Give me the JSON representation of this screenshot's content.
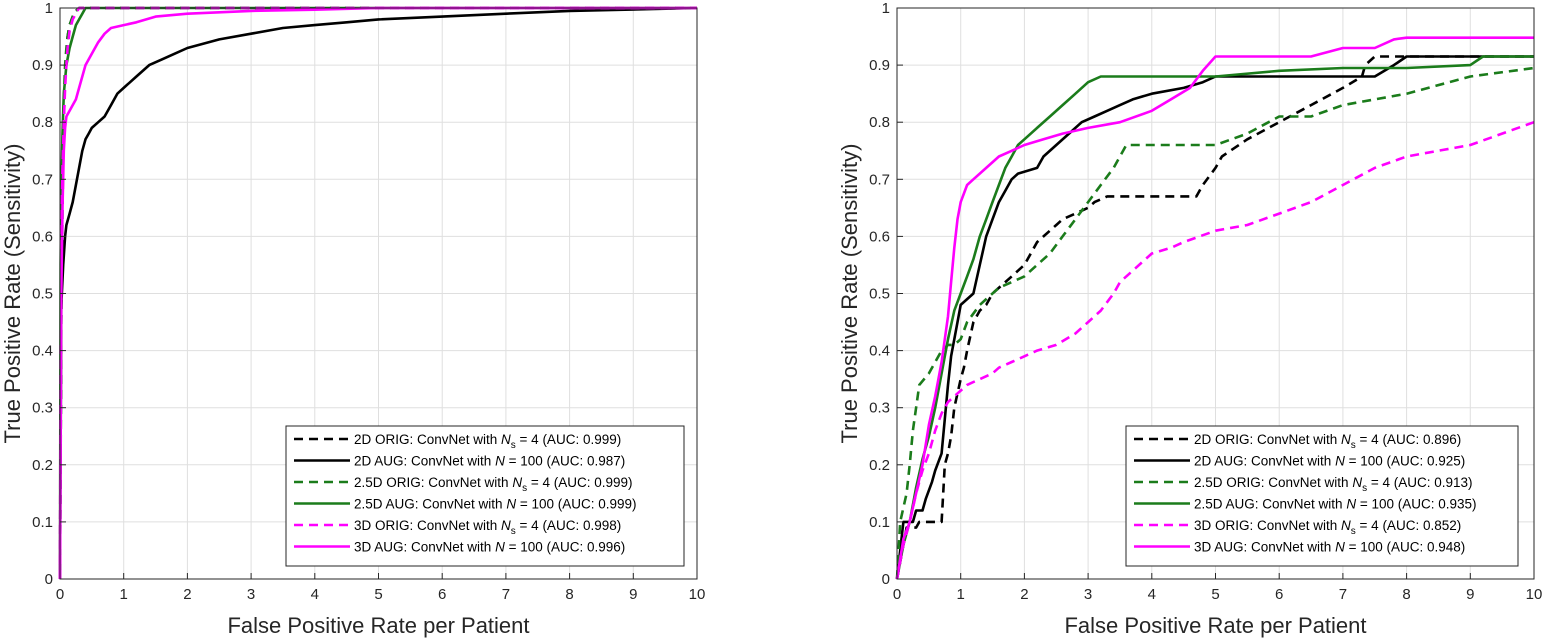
{
  "chart_data": [
    {
      "type": "line",
      "xlabel": "False Positive Rate per Patient",
      "ylabel": "True Positive Rate (Sensitivity)",
      "xlim": [
        0,
        10
      ],
      "ylim": [
        0,
        1
      ],
      "x_ticks": [
        "0",
        "1",
        "2",
        "3",
        "4",
        "5",
        "6",
        "7",
        "8",
        "9",
        "10"
      ],
      "y_ticks": [
        "0",
        "0.1",
        "0.2",
        "0.3",
        "0.4",
        "0.5",
        "0.6",
        "0.7",
        "0.8",
        "0.9",
        "1"
      ],
      "grid": true,
      "legend_position": "bottom-right",
      "series": [
        {
          "name": "2D   ORIG: ConvNet with",
          "sym": "N",
          "sub": "s",
          "tail": " = 4 (AUC: 0.999)",
          "color": "#000000",
          "dashed": true,
          "x": [
            0,
            0.01,
            0.02,
            0.04,
            0.06,
            0.08,
            0.1,
            0.12,
            0.15,
            0.2,
            0.25,
            0.3,
            0.5,
            1,
            10
          ],
          "y": [
            0,
            0.2,
            0.45,
            0.65,
            0.8,
            0.88,
            0.92,
            0.95,
            0.97,
            0.985,
            0.995,
            1,
            1,
            1,
            1
          ]
        },
        {
          "name": "2D   AUG: ConvNet with",
          "sym": "N",
          "sub": "",
          "tail": " = 100 (AUC: 0.987)",
          "color": "#000000",
          "dashed": false,
          "x": [
            0,
            0.02,
            0.05,
            0.08,
            0.1,
            0.15,
            0.2,
            0.25,
            0.3,
            0.35,
            0.4,
            0.45,
            0.5,
            0.6,
            0.7,
            0.8,
            0.9,
            1,
            1.2,
            1.4,
            1.6,
            1.8,
            2,
            2.5,
            3,
            3.5,
            4,
            4.5,
            5,
            6,
            7,
            8,
            10
          ],
          "y": [
            0,
            0.48,
            0.55,
            0.6,
            0.62,
            0.64,
            0.66,
            0.69,
            0.72,
            0.75,
            0.77,
            0.78,
            0.79,
            0.8,
            0.81,
            0.83,
            0.85,
            0.86,
            0.88,
            0.9,
            0.91,
            0.92,
            0.93,
            0.945,
            0.955,
            0.965,
            0.97,
            0.975,
            0.98,
            0.985,
            0.99,
            0.995,
            1
          ]
        },
        {
          "name": "2.5D ORIG: ConvNet with",
          "sym": "N",
          "sub": "s",
          "tail": " = 4 (AUC: 0.999)",
          "color": "#1b7c1b",
          "dashed": true,
          "x": [
            0,
            0.01,
            0.02,
            0.04,
            0.06,
            0.08,
            0.1,
            0.12,
            0.15,
            0.2,
            0.25,
            0.3,
            0.5,
            1,
            10
          ],
          "y": [
            0,
            0.3,
            0.55,
            0.72,
            0.84,
            0.9,
            0.93,
            0.95,
            0.97,
            0.985,
            0.995,
            1,
            1,
            1,
            1
          ]
        },
        {
          "name": "2.5D AUG: ConvNet with",
          "sym": "N",
          "sub": "",
          "tail": " = 100 (AUC: 0.999)",
          "color": "#1b7c1b",
          "dashed": false,
          "x": [
            0,
            0.01,
            0.02,
            0.04,
            0.06,
            0.1,
            0.15,
            0.2,
            0.25,
            0.3,
            0.35,
            0.4,
            0.5,
            1,
            10
          ],
          "y": [
            0,
            0.55,
            0.68,
            0.78,
            0.85,
            0.9,
            0.93,
            0.95,
            0.97,
            0.98,
            0.99,
            1,
            1,
            1,
            1
          ]
        },
        {
          "name": "3D   ORIG: ConvNet with",
          "sym": "N",
          "sub": "s",
          "tail": " = 4 (AUC: 0.998)",
          "color": "#ff00ff",
          "dashed": true,
          "x": [
            0,
            0.01,
            0.02,
            0.04,
            0.06,
            0.08,
            0.1,
            0.12,
            0.15,
            0.2,
            0.25,
            0.3,
            0.5,
            1,
            10
          ],
          "y": [
            0,
            0.4,
            0.6,
            0.72,
            0.8,
            0.86,
            0.9,
            0.93,
            0.96,
            0.98,
            0.99,
            1,
            1,
            1,
            1
          ]
        },
        {
          "name": "3D   AUG: ConvNet with",
          "sym": "N",
          "sub": "",
          "tail": " = 100 (AUC: 0.996)",
          "color": "#ff00ff",
          "dashed": false,
          "x": [
            0,
            0.01,
            0.02,
            0.04,
            0.06,
            0.08,
            0.1,
            0.15,
            0.2,
            0.25,
            0.3,
            0.35,
            0.4,
            0.5,
            0.6,
            0.7,
            0.8,
            1,
            1.2,
            1.5,
            2,
            3,
            4,
            5,
            10
          ],
          "y": [
            0,
            0.25,
            0.5,
            0.65,
            0.75,
            0.79,
            0.81,
            0.82,
            0.83,
            0.84,
            0.86,
            0.88,
            0.9,
            0.92,
            0.94,
            0.955,
            0.965,
            0.97,
            0.975,
            0.985,
            0.99,
            0.995,
            0.997,
            1,
            1
          ]
        }
      ]
    },
    {
      "type": "line",
      "xlabel": "False Positive Rate per Patient",
      "ylabel": "True Positive Rate (Sensitivity)",
      "xlim": [
        0,
        10
      ],
      "ylim": [
        0,
        1
      ],
      "x_ticks": [
        "0",
        "1",
        "2",
        "3",
        "4",
        "5",
        "6",
        "7",
        "8",
        "9",
        "10"
      ],
      "y_ticks": [
        "0",
        "0.1",
        "0.2",
        "0.3",
        "0.4",
        "0.5",
        "0.6",
        "0.7",
        "0.8",
        "0.9",
        "1"
      ],
      "grid": true,
      "legend_position": "bottom-right",
      "series": [
        {
          "name": "2D   ORIG: ConvNet with",
          "sym": "N",
          "sub": "s",
          "tail": " = 4 (AUC: 0.896)",
          "color": "#000000",
          "dashed": true,
          "x": [
            0,
            0.15,
            0.3,
            0.35,
            0.7,
            0.75,
            0.8,
            0.85,
            0.9,
            1.0,
            1.05,
            1.1,
            1.2,
            1.3,
            1.4,
            1.5,
            1.7,
            1.8,
            1.9,
            2.0,
            2.1,
            2.2,
            2.3,
            2.5,
            2.6,
            2.8,
            3.0,
            3.1,
            3.3,
            3.5,
            4.7,
            4.8,
            5.0,
            5.1,
            5.5,
            6.0,
            6.5,
            7.0,
            7.3,
            7.35,
            7.5,
            10
          ],
          "y": [
            0,
            0.09,
            0.09,
            0.1,
            0.1,
            0.2,
            0.22,
            0.25,
            0.3,
            0.35,
            0.37,
            0.4,
            0.45,
            0.47,
            0.48,
            0.5,
            0.52,
            0.53,
            0.54,
            0.55,
            0.57,
            0.59,
            0.6,
            0.62,
            0.63,
            0.64,
            0.65,
            0.66,
            0.67,
            0.67,
            0.67,
            0.69,
            0.72,
            0.74,
            0.77,
            0.8,
            0.83,
            0.86,
            0.88,
            0.9,
            0.915,
            0.915
          ]
        },
        {
          "name": "2D   AUG: ConvNet with",
          "sym": "N",
          "sub": "",
          "tail": " = 100 (AUC: 0.925)",
          "color": "#000000",
          "dashed": false,
          "x": [
            0,
            0.1,
            0.25,
            0.3,
            0.4,
            0.45,
            0.55,
            0.6,
            0.7,
            0.8,
            0.85,
            0.9,
            0.95,
            1.0,
            1.2,
            1.3,
            1.4,
            1.5,
            1.6,
            1.7,
            1.8,
            1.9,
            2.2,
            2.3,
            2.5,
            2.7,
            2.9,
            3.1,
            3.3,
            3.5,
            3.7,
            4.0,
            4.5,
            4.8,
            5.0,
            6.0,
            7.0,
            7.5,
            7.8,
            8.0,
            10
          ],
          "y": [
            0,
            0.1,
            0.1,
            0.12,
            0.12,
            0.14,
            0.17,
            0.19,
            0.22,
            0.34,
            0.39,
            0.42,
            0.45,
            0.48,
            0.5,
            0.55,
            0.6,
            0.63,
            0.66,
            0.68,
            0.7,
            0.71,
            0.72,
            0.74,
            0.76,
            0.78,
            0.8,
            0.81,
            0.82,
            0.83,
            0.84,
            0.85,
            0.86,
            0.87,
            0.88,
            0.88,
            0.88,
            0.88,
            0.9,
            0.915,
            0.915
          ]
        },
        {
          "name": "2.5D ORIG: ConvNet with",
          "sym": "N",
          "sub": "s",
          "tail": " = 4 (AUC: 0.913)",
          "color": "#1b7c1b",
          "dashed": true,
          "x": [
            0,
            0.05,
            0.15,
            0.2,
            0.25,
            0.3,
            0.35,
            0.5,
            0.6,
            0.7,
            0.8,
            0.9,
            1.0,
            1.1,
            1.3,
            1.5,
            1.6,
            1.8,
            2.0,
            2.2,
            2.4,
            2.6,
            2.8,
            3.0,
            3.2,
            3.4,
            3.6,
            4.5,
            5.0,
            5.5,
            6.0,
            6.5,
            7.0,
            7.5,
            8.0,
            9.0,
            10
          ],
          "y": [
            0,
            0.1,
            0.15,
            0.2,
            0.26,
            0.3,
            0.34,
            0.36,
            0.38,
            0.4,
            0.41,
            0.41,
            0.42,
            0.45,
            0.48,
            0.5,
            0.51,
            0.52,
            0.53,
            0.55,
            0.57,
            0.6,
            0.63,
            0.66,
            0.69,
            0.72,
            0.76,
            0.76,
            0.76,
            0.78,
            0.81,
            0.81,
            0.83,
            0.84,
            0.85,
            0.88,
            0.895
          ]
        },
        {
          "name": "2.5D AUG: ConvNet with",
          "sym": "N",
          "sub": "",
          "tail": " = 100 (AUC: 0.935)",
          "color": "#1b7c1b",
          "dashed": false,
          "x": [
            0,
            0.1,
            0.2,
            0.3,
            0.4,
            0.5,
            0.6,
            0.7,
            0.8,
            0.9,
            1.0,
            1.1,
            1.2,
            1.3,
            1.4,
            1.5,
            1.6,
            1.7,
            1.8,
            1.9,
            2.0,
            2.2,
            2.4,
            2.6,
            2.8,
            3.0,
            3.2,
            4.5,
            5.0,
            6.0,
            7.0,
            8.0,
            9.0,
            9.2,
            10
          ],
          "y": [
            0,
            0.06,
            0.1,
            0.16,
            0.21,
            0.25,
            0.3,
            0.36,
            0.42,
            0.47,
            0.5,
            0.53,
            0.56,
            0.6,
            0.63,
            0.66,
            0.69,
            0.72,
            0.74,
            0.76,
            0.77,
            0.79,
            0.81,
            0.83,
            0.85,
            0.87,
            0.88,
            0.88,
            0.88,
            0.89,
            0.895,
            0.895,
            0.9,
            0.915,
            0.915
          ]
        },
        {
          "name": "3D   ORIG: ConvNet with",
          "sym": "N",
          "sub": "s",
          "tail": " = 4 (AUC: 0.852)",
          "color": "#ff00ff",
          "dashed": true,
          "x": [
            0,
            0.1,
            0.2,
            0.3,
            0.4,
            0.5,
            0.6,
            0.7,
            0.8,
            0.9,
            1.0,
            1.1,
            1.3,
            1.5,
            1.6,
            1.8,
            2.0,
            2.2,
            2.5,
            2.8,
            3.0,
            3.2,
            3.4,
            3.5,
            3.7,
            4.0,
            4.3,
            4.5,
            5.0,
            5.5,
            6.0,
            6.5,
            7.0,
            7.5,
            8.0,
            9.0,
            10
          ],
          "y": [
            0,
            0.06,
            0.1,
            0.15,
            0.19,
            0.22,
            0.26,
            0.29,
            0.31,
            0.32,
            0.33,
            0.34,
            0.35,
            0.36,
            0.37,
            0.38,
            0.39,
            0.4,
            0.41,
            0.43,
            0.45,
            0.47,
            0.5,
            0.52,
            0.54,
            0.57,
            0.58,
            0.59,
            0.61,
            0.62,
            0.64,
            0.66,
            0.69,
            0.72,
            0.74,
            0.76,
            0.8
          ]
        },
        {
          "name": "3D   AUG: ConvNet with",
          "sym": "N",
          "sub": "",
          "tail": " = 100 (AUC: 0.948)",
          "color": "#ff00ff",
          "dashed": false,
          "x": [
            0,
            0.1,
            0.2,
            0.3,
            0.4,
            0.5,
            0.6,
            0.7,
            0.8,
            0.85,
            0.9,
            0.95,
            1.0,
            1.1,
            1.2,
            1.4,
            1.6,
            1.8,
            2.0,
            2.3,
            2.6,
            3.0,
            3.5,
            4.0,
            4.3,
            4.6,
            4.8,
            5.0,
            6.0,
            6.5,
            7.0,
            7.5,
            7.8,
            8.0,
            10
          ],
          "y": [
            0,
            0.07,
            0.1,
            0.15,
            0.2,
            0.27,
            0.32,
            0.38,
            0.46,
            0.52,
            0.58,
            0.63,
            0.66,
            0.69,
            0.7,
            0.72,
            0.74,
            0.75,
            0.76,
            0.77,
            0.78,
            0.79,
            0.8,
            0.82,
            0.84,
            0.86,
            0.89,
            0.915,
            0.915,
            0.915,
            0.93,
            0.93,
            0.945,
            0.948,
            0.948
          ]
        }
      ]
    }
  ]
}
